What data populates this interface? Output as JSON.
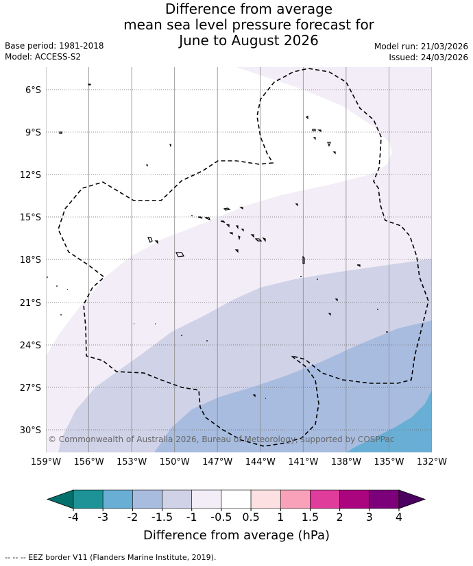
{
  "title_lines": [
    "Difference from average",
    "mean sea level pressure forecast for",
    "June to August 2026"
  ],
  "base_period": "Base period: 1981-2018",
  "model": "Model: ACCESS-S2",
  "model_run": "Model run: 21/03/2026",
  "issued": "Issued: 24/03/2026",
  "lat_labels": [
    "6°S",
    "9°S",
    "12°S",
    "15°S",
    "18°S",
    "21°S",
    "24°S",
    "27°S",
    "30°S"
  ],
  "lon_labels": [
    "159°W",
    "156°W",
    "153°W",
    "150°W",
    "147°W",
    "144°W",
    "141°W",
    "138°W",
    "135°W",
    "132°W"
  ],
  "copyright": "© Commonwealth of Australia 2026, Bureau of Meteorology, supported by COSPPac",
  "colorbar": {
    "title": "Difference from average (hPa)",
    "ticks": [
      "-4",
      "-3",
      "-2",
      "-1.5",
      "-1",
      "-0.5",
      "0.5",
      "1",
      "1.5",
      "2",
      "3",
      "4"
    ],
    "colors": [
      "#1d9398",
      "#68aed5",
      "#a8bcdf",
      "#d0d2e8",
      "#f2edf6",
      "#ffffff",
      "#fde1e2",
      "#f8a1b9",
      "#df3c9b",
      "#aa057e",
      "#7b0079"
    ],
    "under_color": "#04706b",
    "over_color": "#4b0060"
  },
  "footer": "--  --  -- EEZ border V11 (Flanders Marine Institute, 2019)."
}
